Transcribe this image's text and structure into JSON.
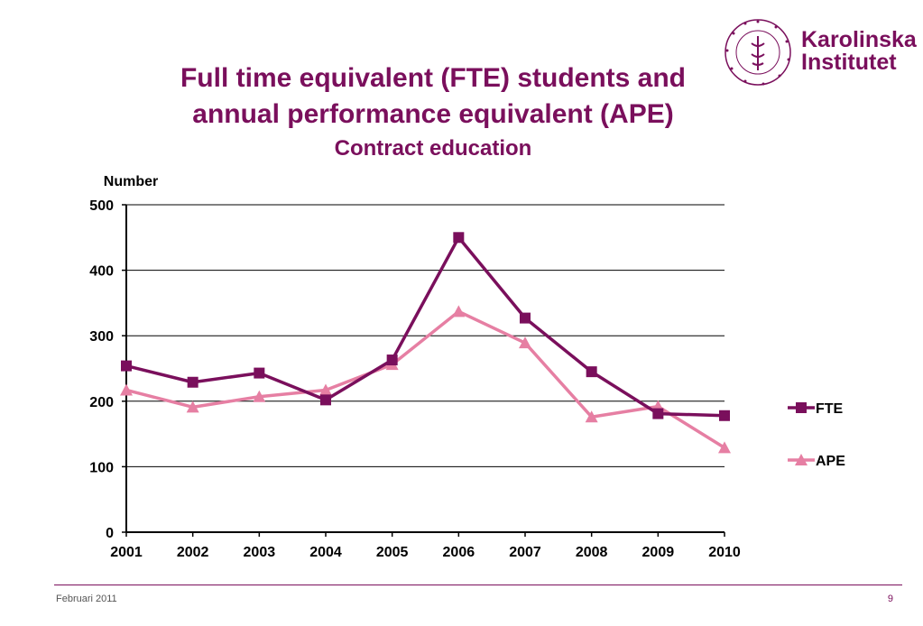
{
  "title_line1": "Full time equivalent (FTE) students and",
  "title_line2": "annual performance equivalent (APE)",
  "subtitle": "Contract education",
  "logo": {
    "text_line1": "Karolinska",
    "text_line2": "Institutet",
    "seal_text": "KAROLINSKA INSTITUTET · ANNO 1810",
    "color": "#7a0f5c"
  },
  "footer": {
    "date": "Februari 2011",
    "page": "9"
  },
  "chart_data": {
    "type": "line",
    "title": "",
    "ylabel": "Number",
    "xlabel": "",
    "categories": [
      "2001",
      "2002",
      "2003",
      "2004",
      "2005",
      "2006",
      "2007",
      "2008",
      "2009",
      "2010"
    ],
    "ylim": [
      0,
      500
    ],
    "yticks": [
      0,
      100,
      200,
      300,
      400,
      500
    ],
    "grid": true,
    "legend_position": "right",
    "series": [
      {
        "name": "FTE",
        "color": "#7a0f5c",
        "marker": "square",
        "values": [
          254,
          229,
          243,
          202,
          263,
          450,
          327,
          245,
          181,
          178
        ]
      },
      {
        "name": "APE",
        "color": "#e67fa3",
        "marker": "triangle",
        "values": [
          217,
          191,
          207,
          217,
          256,
          337,
          289,
          176,
          192,
          129
        ]
      }
    ]
  }
}
